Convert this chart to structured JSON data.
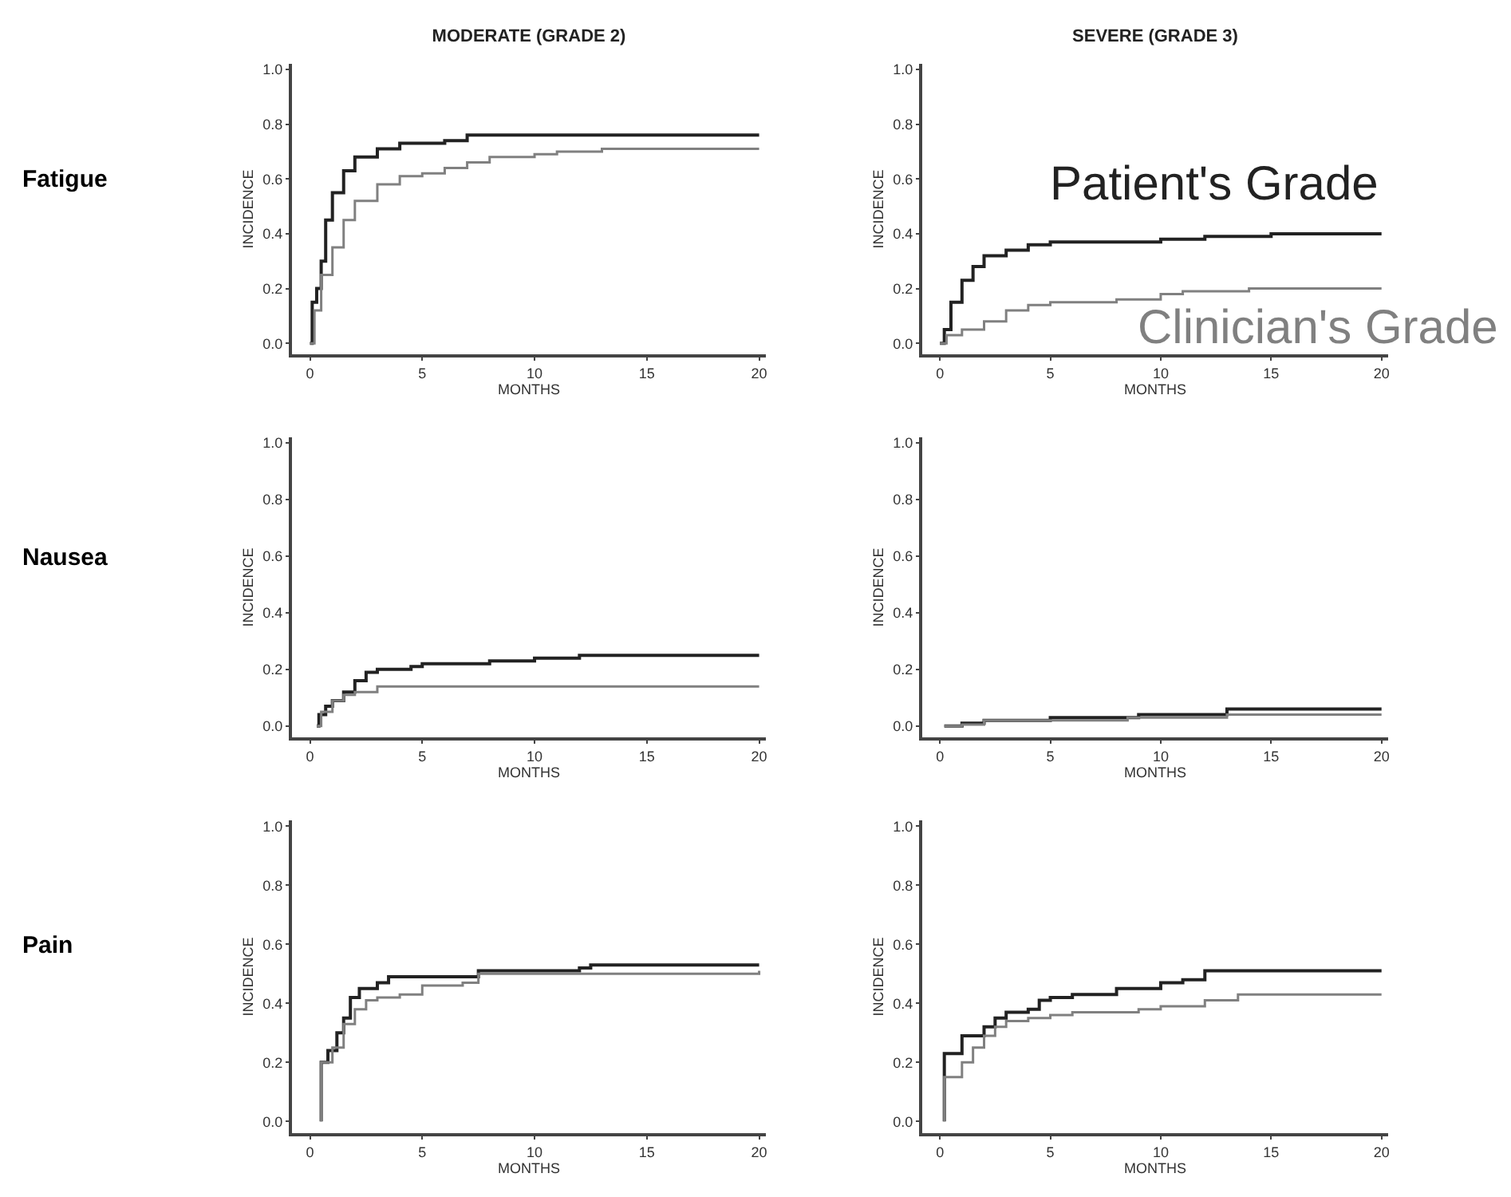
{
  "chart_data": [
    {
      "type": "step",
      "title": "MODERATE (GRADE 2)",
      "xlabel": "MONTHS",
      "ylabel": "INCIDENCE",
      "annotations": [
        "Fatigue"
      ],
      "xlim": [
        -0.8,
        20.3
      ],
      "ylim": [
        -0.04,
        1.02
      ],
      "xticks": [
        0,
        5,
        10,
        15,
        20
      ],
      "yticks": [
        {
          "value": 0,
          "label": "0.0"
        },
        {
          "value": 0.2,
          "label": "0.2"
        },
        {
          "value": 0.4,
          "label": "0.4"
        },
        {
          "value": 0.6,
          "label": "0.6"
        },
        {
          "value": 0.8,
          "label": "0.8"
        },
        {
          "value": 1,
          "label": "1.0"
        }
      ],
      "series": [
        {
          "color": "#222222",
          "x": [
            0,
            0.1,
            0.3,
            0.5,
            0.7,
            1,
            1.5,
            2,
            3,
            4,
            6,
            7,
            20
          ],
          "values": [
            0,
            0.15,
            0.2,
            0.3,
            0.45,
            0.55,
            0.63,
            0.68,
            0.71,
            0.73,
            0.74,
            0.76,
            0.76
          ]
        },
        {
          "color": "#808080",
          "x": [
            0,
            0.2,
            0.5,
            1,
            1.5,
            2,
            3,
            4,
            5,
            6,
            7,
            8,
            10,
            11,
            13,
            20
          ],
          "values": [
            0,
            0.12,
            0.25,
            0.35,
            0.45,
            0.52,
            0.58,
            0.61,
            0.62,
            0.64,
            0.66,
            0.68,
            0.69,
            0.7,
            0.71,
            0.71
          ]
        }
      ]
    },
    {
      "type": "step",
      "title": "SEVERE (GRADE 3)",
      "xlabel": "MONTHS",
      "ylabel": "INCIDENCE",
      "xlim": [
        -0.8,
        20.3
      ],
      "ylim": [
        -0.04,
        1.02
      ],
      "xticks": [
        0,
        5,
        10,
        15,
        20
      ],
      "yticks": [
        {
          "value": 0,
          "label": "0.0"
        },
        {
          "value": 0.2,
          "label": "0.2"
        },
        {
          "value": 0.4,
          "label": "0.4"
        },
        {
          "value": 0.6,
          "label": "0.6"
        },
        {
          "value": 0.8,
          "label": "0.8"
        },
        {
          "value": 1,
          "label": "1.0"
        }
      ],
      "series": [
        {
          "name": "Patient's Grade",
          "color": "#222222",
          "x": [
            0,
            0.2,
            0.5,
            1,
            1.5,
            2,
            3,
            4,
            5,
            8,
            10,
            12,
            15,
            20
          ],
          "values": [
            0,
            0.05,
            0.15,
            0.23,
            0.28,
            0.32,
            0.34,
            0.36,
            0.37,
            0.37,
            0.38,
            0.39,
            0.4,
            0.4
          ]
        },
        {
          "name": "Clinician's Grade",
          "color": "#808080",
          "x": [
            0,
            0.3,
            1,
            2,
            3,
            4,
            5,
            8,
            10,
            11,
            14,
            20
          ],
          "values": [
            0,
            0.03,
            0.05,
            0.08,
            0.12,
            0.14,
            0.15,
            0.16,
            0.18,
            0.19,
            0.2,
            0.2
          ]
        }
      ]
    },
    {
      "type": "step",
      "xlabel": "MONTHS",
      "ylabel": "INCIDENCE",
      "annotations": [
        "Nausea"
      ],
      "xlim": [
        -0.8,
        20.3
      ],
      "ylim": [
        -0.04,
        1.02
      ],
      "xticks": [
        0,
        5,
        10,
        15,
        20
      ],
      "yticks": [
        {
          "value": 0,
          "label": "0.0"
        },
        {
          "value": 0.2,
          "label": "0.2"
        },
        {
          "value": 0.4,
          "label": "0.4"
        },
        {
          "value": 0.6,
          "label": "0.6"
        },
        {
          "value": 0.8,
          "label": "0.8"
        },
        {
          "value": 1,
          "label": "1.0"
        }
      ],
      "series": [
        {
          "color": "#222222",
          "x": [
            0.3,
            0.4,
            0.7,
            1,
            1.5,
            2,
            2.5,
            3,
            4.5,
            5,
            7,
            8,
            10,
            12,
            20
          ],
          "values": [
            0,
            0.04,
            0.07,
            0.09,
            0.12,
            0.16,
            0.19,
            0.2,
            0.21,
            0.22,
            0.22,
            0.23,
            0.24,
            0.25,
            0.25
          ]
        },
        {
          "color": "#808080",
          "x": [
            0.3,
            0.5,
            1,
            1.5,
            2,
            3,
            20
          ],
          "values": [
            0,
            0.05,
            0.09,
            0.11,
            0.12,
            0.14,
            0.14
          ]
        }
      ]
    },
    {
      "type": "step",
      "xlabel": "MONTHS",
      "ylabel": "INCIDENCE",
      "xlim": [
        -0.8,
        20.3
      ],
      "ylim": [
        -0.04,
        1.02
      ],
      "xticks": [
        0,
        5,
        10,
        15,
        20
      ],
      "yticks": [
        {
          "value": 0,
          "label": "0.0"
        },
        {
          "value": 0.2,
          "label": "0.2"
        },
        {
          "value": 0.4,
          "label": "0.4"
        },
        {
          "value": 0.6,
          "label": "0.6"
        },
        {
          "value": 0.8,
          "label": "0.8"
        },
        {
          "value": 1,
          "label": "1.0"
        }
      ],
      "series": [
        {
          "color": "#222222",
          "x": [
            0.2,
            1,
            2,
            5,
            9,
            13,
            20
          ],
          "values": [
            0,
            0.01,
            0.02,
            0.03,
            0.04,
            0.06,
            0.06
          ]
        },
        {
          "color": "#808080",
          "x": [
            0.2,
            1,
            2,
            5,
            8.5,
            13,
            20
          ],
          "values": [
            0,
            0.005,
            0.02,
            0.02,
            0.03,
            0.04,
            0.04
          ]
        }
      ]
    },
    {
      "type": "step",
      "xlabel": "MONTHS",
      "ylabel": "INCIDENCE",
      "annotations": [
        "Pain"
      ],
      "xlim": [
        -0.8,
        20.3
      ],
      "ylim": [
        -0.04,
        1.02
      ],
      "xticks": [
        0,
        5,
        10,
        15,
        20
      ],
      "yticks": [
        {
          "value": 0,
          "label": "0.0"
        },
        {
          "value": 0.2,
          "label": "0.2"
        },
        {
          "value": 0.4,
          "label": "0.4"
        },
        {
          "value": 0.6,
          "label": "0.6"
        },
        {
          "value": 0.8,
          "label": "0.8"
        },
        {
          "value": 1,
          "label": "1.0"
        }
      ],
      "series": [
        {
          "color": "#222222",
          "x": [
            0.5,
            0.5,
            0.8,
            1.2,
            1.5,
            1.8,
            2.2,
            3,
            3.5,
            7,
            7.5,
            10,
            12,
            12.5,
            20
          ],
          "values": [
            0,
            0.2,
            0.24,
            0.3,
            0.35,
            0.42,
            0.45,
            0.47,
            0.49,
            0.49,
            0.51,
            0.51,
            0.52,
            0.53,
            0.53
          ]
        },
        {
          "color": "#808080",
          "x": [
            0.5,
            0.5,
            1,
            1.5,
            2,
            2.5,
            3,
            4,
            5,
            6.8,
            7.5,
            20
          ],
          "values": [
            0,
            0.2,
            0.25,
            0.33,
            0.38,
            0.41,
            0.42,
            0.43,
            0.46,
            0.47,
            0.5,
            0.51
          ]
        }
      ]
    },
    {
      "type": "step",
      "xlabel": "MONTHS",
      "ylabel": "INCIDENCE",
      "xlim": [
        -0.8,
        20.3
      ],
      "ylim": [
        -0.04,
        1.02
      ],
      "xticks": [
        0,
        5,
        10,
        15,
        20
      ],
      "yticks": [
        {
          "value": 0,
          "label": "0.0"
        },
        {
          "value": 0.2,
          "label": "0.2"
        },
        {
          "value": 0.4,
          "label": "0.4"
        },
        {
          "value": 0.6,
          "label": "0.6"
        },
        {
          "value": 0.8,
          "label": "0.8"
        },
        {
          "value": 1,
          "label": "1.0"
        }
      ],
      "series": [
        {
          "color": "#222222",
          "x": [
            0.2,
            0.2,
            1,
            2,
            2.5,
            3,
            4,
            4.5,
            5,
            6,
            8,
            10,
            11,
            12,
            20
          ],
          "values": [
            0,
            0.23,
            0.29,
            0.32,
            0.35,
            0.37,
            0.38,
            0.41,
            0.42,
            0.43,
            0.45,
            0.47,
            0.48,
            0.51,
            0.51
          ]
        },
        {
          "color": "#808080",
          "x": [
            0.2,
            0.2,
            1,
            1.5,
            2,
            2.5,
            3,
            4,
            5,
            6,
            9,
            10,
            12,
            13.5,
            20
          ],
          "values": [
            0,
            0.15,
            0.2,
            0.25,
            0.29,
            0.32,
            0.34,
            0.35,
            0.36,
            0.37,
            0.38,
            0.39,
            0.41,
            0.43,
            0.43
          ]
        }
      ]
    }
  ]
}
